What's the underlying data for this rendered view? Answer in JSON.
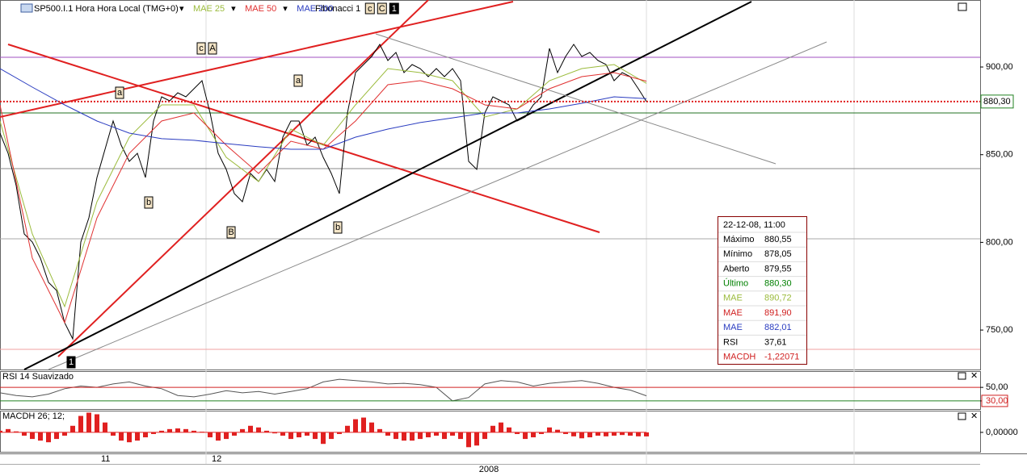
{
  "toolbar": {
    "symbol": "SP500.I.1 Hora Hora Local (TMG+0)",
    "study": "Fibonacci 1",
    "buttons": [
      "c",
      "C",
      "1"
    ]
  },
  "chart_data": [
    {
      "type": "line",
      "xlim": [
        0,
        80
      ],
      "ylim": [
        727.5,
        938.2
      ],
      "yticks": [
        {
          "value": 750,
          "label": "750,00"
        },
        {
          "value": 800,
          "label": "800,00"
        },
        {
          "value": 850,
          "label": "850,00"
        },
        {
          "value": 900,
          "label": "900,00"
        }
      ],
      "last": {
        "value": 880.3,
        "label": "880,30"
      },
      "series": [
        {
          "color": "#000000",
          "values": [
            862.3,
            850.8,
            832.4,
            804.8,
            800.2,
            791.0,
            777.2,
            772.6,
            754.2,
            745.0,
            800.2,
            814.0,
            837.0,
            853.1,
            869.2,
            855.4,
            846.2,
            850.8,
            837.0,
            869.2,
            883.0,
            880.7,
            885.3,
            883.0,
            887.6,
            892.2,
            873.8,
            850.8,
            841.6,
            827.8,
            823.2,
            839.3,
            834.7,
            841.6,
            834.7,
            860.0,
            869.2,
            869.2,
            855.4,
            860.0,
            848.5,
            839.3,
            827.8,
            873.8,
            896.8,
            901.4,
            906.0,
            912.9,
            903.7,
            908.3,
            896.8,
            901.4,
            899.1,
            894.5,
            899.1,
            894.5,
            899.1,
            892.2,
            846.2,
            841.6,
            873.8,
            883.0,
            880.7,
            878.4,
            869.2,
            871.5,
            878.4,
            883.0,
            910.6,
            896.8,
            906.0,
            912.9,
            906.0,
            908.3,
            903.7,
            901.4,
            892.2,
            896.8,
            894.5,
            887.6,
            880.3
          ]
        },
        {
          "name": "MAE 25",
          "color": "#9bbb3c",
          "x": [
            0,
            4,
            8,
            12,
            16,
            20,
            24,
            28,
            32,
            36,
            40,
            44,
            48,
            52,
            56,
            60,
            64,
            68,
            72,
            76,
            80
          ],
          "values": [
            869.2,
            804.8,
            763.4,
            823.2,
            860.0,
            878.4,
            878.4,
            848.5,
            834.7,
            864.6,
            855.4,
            878.4,
            899.1,
            896.8,
            892.2,
            871.5,
            876.1,
            892.2,
            899.1,
            901.4,
            890.7
          ]
        },
        {
          "name": "MAE 50",
          "color": "#e03030",
          "x": [
            0,
            4,
            8,
            12,
            16,
            20,
            24,
            28,
            32,
            36,
            40,
            44,
            48,
            52,
            56,
            60,
            64,
            68,
            72,
            76,
            80
          ],
          "values": [
            878.4,
            791.0,
            754.2,
            814.0,
            850.8,
            869.2,
            873.8,
            855.4,
            839.3,
            857.7,
            853.1,
            869.2,
            889.9,
            892.2,
            887.6,
            878.4,
            876.1,
            887.6,
            894.5,
            896.8,
            891.9
          ]
        },
        {
          "name": "MAE 200",
          "color": "#2a3cc0",
          "x": [
            0,
            4,
            8,
            12,
            16,
            20,
            24,
            28,
            32,
            36,
            40,
            44,
            48,
            52,
            56,
            60,
            64,
            68,
            72,
            76,
            80
          ],
          "values": [
            899.1,
            888.5,
            878.4,
            869.2,
            862.3,
            859.1,
            858.2,
            856.3,
            854.5,
            853.1,
            853.1,
            860.0,
            864.6,
            868.3,
            871.0,
            873.8,
            873.8,
            876.1,
            879.3,
            883.0,
            882.0
          ]
        }
      ]
    },
    {
      "type": "line",
      "title": "RSI 14 Suavizado",
      "xlim": [
        0,
        40
      ],
      "ylim": [
        18,
        74
      ],
      "yticks": [
        {
          "value": 50,
          "label": "50,00"
        },
        {
          "value": 30,
          "label": "30,00"
        }
      ],
      "series": [
        {
          "color": "#555555",
          "values": [
            42,
            38,
            36,
            40,
            48,
            52,
            50,
            55,
            58,
            52,
            48,
            38,
            36,
            40,
            45,
            42,
            44,
            40,
            44,
            48,
            58,
            62,
            60,
            58,
            55,
            56,
            54,
            50,
            30,
            35,
            55,
            60,
            58,
            52,
            56,
            58,
            60,
            56,
            50,
            46,
            37.6
          ]
        }
      ]
    },
    {
      "type": "bar",
      "title": "MACDH 26; 12;",
      "xlim": [
        0,
        80
      ],
      "ylim": [
        -5.9,
        6.6
      ],
      "color": "#e02020",
      "yticks": [
        {
          "value": 0,
          "label": "0,00000"
        }
      ],
      "values": [
        0.5,
        1.0,
        0.3,
        -1,
        -2,
        -2.5,
        -3,
        -2,
        -1,
        2,
        5,
        6,
        5.5,
        3,
        -1,
        -2.5,
        -3,
        -2.5,
        -1.5,
        -0.5,
        0.5,
        1,
        1.2,
        1,
        0.5,
        0.2,
        -1.5,
        -2.5,
        -2,
        -1,
        1,
        2,
        1.5,
        0.5,
        -0.3,
        -1,
        -2,
        -1.5,
        -1,
        -2,
        -3.5,
        -2,
        -0.5,
        2,
        4,
        4.5,
        3,
        1,
        -1,
        -2,
        -2.5,
        -2.5,
        -2,
        -1.5,
        -1,
        -2,
        -1,
        -2,
        -4.5,
        -4,
        -2,
        2,
        3,
        1.5,
        -0.5,
        -2,
        -1.5,
        -0.5,
        1.5,
        0.8,
        -0.5,
        -1.2,
        -1.8,
        -1.5,
        -1,
        -1.2,
        -1,
        -0.8,
        -1,
        -1.2,
        -1.22
      ]
    }
  ],
  "time_axis": [
    "11",
    "12",
    "2008"
  ],
  "annotations": [
    "a",
    "c",
    "A",
    "a",
    "b",
    "B",
    "b",
    "1"
  ],
  "info_box": {
    "date": "22-12-08, 11:00",
    "rows": [
      {
        "label": "Máximo",
        "value": "880,55",
        "color": "#000000"
      },
      {
        "label": "Mínimo",
        "value": "878,05",
        "color": "#000000"
      },
      {
        "label": "Aberto",
        "value": "879,55",
        "color": "#000000"
      },
      {
        "label": "Último",
        "value": "880,30",
        "color": "#008000"
      },
      {
        "label": "MAE",
        "value": "890,72",
        "color": "#9bbb3c"
      },
      {
        "label": "MAE",
        "value": "891,90",
        "color": "#d02020"
      },
      {
        "label": "MAE",
        "value": "882,01",
        "color": "#2a3cc0"
      },
      {
        "label": "RSI",
        "value": "37,61",
        "color": "#000000"
      },
      {
        "label": "MACDH",
        "value": "-1,22071",
        "color": "#d02020"
      }
    ]
  }
}
